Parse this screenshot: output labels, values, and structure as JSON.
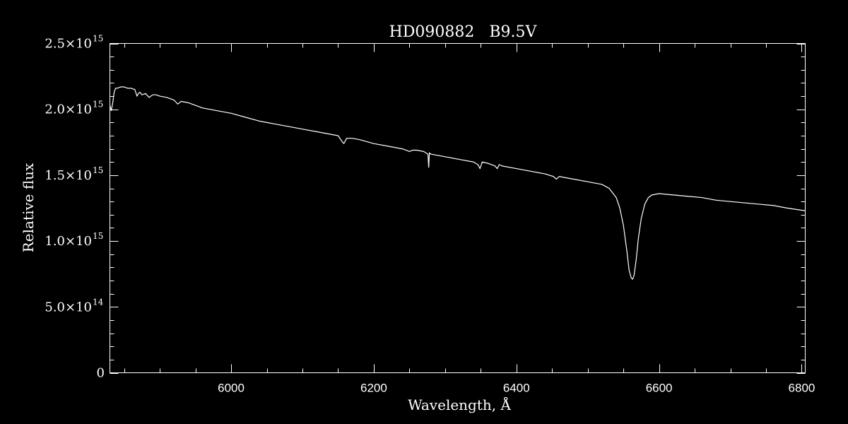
{
  "chart_data": {
    "type": "line",
    "title": "HD090882   B9.5V",
    "xlabel": "Wavelength, Å",
    "ylabel": "Relative flux",
    "xlim": [
      5830,
      6805
    ],
    "ylim": [
      0,
      2500000000000000.0
    ],
    "grid": false,
    "line_color": "#ffffff",
    "background": "#000000",
    "x_ticks": [
      {
        "value": 6000,
        "label": "6000"
      },
      {
        "value": 6200,
        "label": "6200"
      },
      {
        "value": 6400,
        "label": "6400"
      },
      {
        "value": 6600,
        "label": "6600"
      },
      {
        "value": 6800,
        "label": "6800"
      }
    ],
    "y_ticks": [
      {
        "value": 0,
        "mantissa": "0",
        "exponent": ""
      },
      {
        "value": 500000000000000.0,
        "mantissa": "5.0×10",
        "exponent": "14"
      },
      {
        "value": 1000000000000000.0,
        "mantissa": "1.0×10",
        "exponent": "15"
      },
      {
        "value": 1500000000000000.0,
        "mantissa": "1.5×10",
        "exponent": "15"
      },
      {
        "value": 2000000000000000.0,
        "mantissa": "2.0×10",
        "exponent": "15"
      },
      {
        "value": 2500000000000000.0,
        "mantissa": "2.5×10",
        "exponent": "15"
      }
    ],
    "series": [
      {
        "x": [
          5830,
          5832,
          5834,
          5836,
          5838,
          5840,
          5845,
          5850,
          5855,
          5860,
          5865,
          5868,
          5870,
          5872,
          5875,
          5880,
          5885,
          5890,
          5895,
          5900,
          5910,
          5920,
          5925,
          5930,
          5940,
          5950,
          5960,
          5970,
          5980,
          5990,
          6000,
          6020,
          6040,
          6060,
          6080,
          6100,
          6120,
          6140,
          6150,
          6155,
          6158,
          6162,
          6170,
          6180,
          6200,
          6220,
          6240,
          6245,
          6250,
          6255,
          6260,
          6270,
          6276,
          6277,
          6278,
          6280,
          6300,
          6320,
          6340,
          6346,
          6349,
          6352,
          6360,
          6370,
          6373,
          6376,
          6380,
          6400,
          6420,
          6440,
          6452,
          6456,
          6460,
          6470,
          6480,
          6500,
          6510,
          6520,
          6530,
          6540,
          6545,
          6550,
          6555,
          6558,
          6561,
          6563,
          6565,
          6568,
          6571,
          6575,
          6580,
          6585,
          6590,
          6600,
          6620,
          6640,
          6660,
          6680,
          6700,
          6720,
          6740,
          6760,
          6780,
          6805
        ],
        "y": [
          2030000000000000.0,
          1990000000000000.0,
          2050000000000000.0,
          2130000000000000.0,
          2160000000000000.0,
          2160000000000000.0,
          2170000000000000.0,
          2170000000000000.0,
          2160000000000000.0,
          2160000000000000.0,
          2150000000000000.0,
          2100000000000000.0,
          2120000000000000.0,
          2130000000000000.0,
          2110000000000000.0,
          2120000000000000.0,
          2090000000000000.0,
          2110000000000000.0,
          2110000000000000.0,
          2100000000000000.0,
          2090000000000000.0,
          2070000000000000.0,
          2040000000000000.0,
          2060000000000000.0,
          2050000000000000.0,
          2030000000000000.0,
          2010000000000000.0,
          2000000000000000.0,
          1990000000000000.0,
          1980000000000000.0,
          1970000000000000.0,
          1940000000000000.0,
          1910000000000000.0,
          1890000000000000.0,
          1870000000000000.0,
          1850000000000000.0,
          1830000000000000.0,
          1810000000000000.0,
          1800000000000000.0,
          1760000000000000.0,
          1740000000000000.0,
          1780000000000000.0,
          1780000000000000.0,
          1770000000000000.0,
          1740000000000000.0,
          1720000000000000.0,
          1700000000000000.0,
          1690000000000000.0,
          1680000000000000.0,
          1690000000000000.0,
          1690000000000000.0,
          1680000000000000.0,
          1660000000000000.0,
          1560000000000000.0,
          1670000000000000.0,
          1660000000000000.0,
          1640000000000000.0,
          1620000000000000.0,
          1600000000000000.0,
          1580000000000000.0,
          1550000000000000.0,
          1600000000000000.0,
          1590000000000000.0,
          1570000000000000.0,
          1550000000000000.0,
          1580000000000000.0,
          1570000000000000.0,
          1550000000000000.0,
          1530000000000000.0,
          1510000000000000.0,
          1490000000000000.0,
          1470000000000000.0,
          1490000000000000.0,
          1480000000000000.0,
          1470000000000000.0,
          1450000000000000.0,
          1440000000000000.0,
          1430000000000000.0,
          1400000000000000.0,
          1330000000000000.0,
          1250000000000000.0,
          1120000000000000.0,
          920000000000000.0,
          780000000000000.0,
          720000000000000.0,
          710000000000000.0,
          740000000000000.0,
          860000000000000.0,
          1020000000000000.0,
          1170000000000000.0,
          1280000000000000.0,
          1330000000000000.0,
          1350000000000000.0,
          1360000000000000.0,
          1350000000000000.0,
          1340000000000000.0,
          1330000000000000.0,
          1310000000000000.0,
          1300000000000000.0,
          1290000000000000.0,
          1280000000000000.0,
          1270000000000000.0,
          1250000000000000.0,
          1230000000000000.0
        ]
      }
    ]
  }
}
